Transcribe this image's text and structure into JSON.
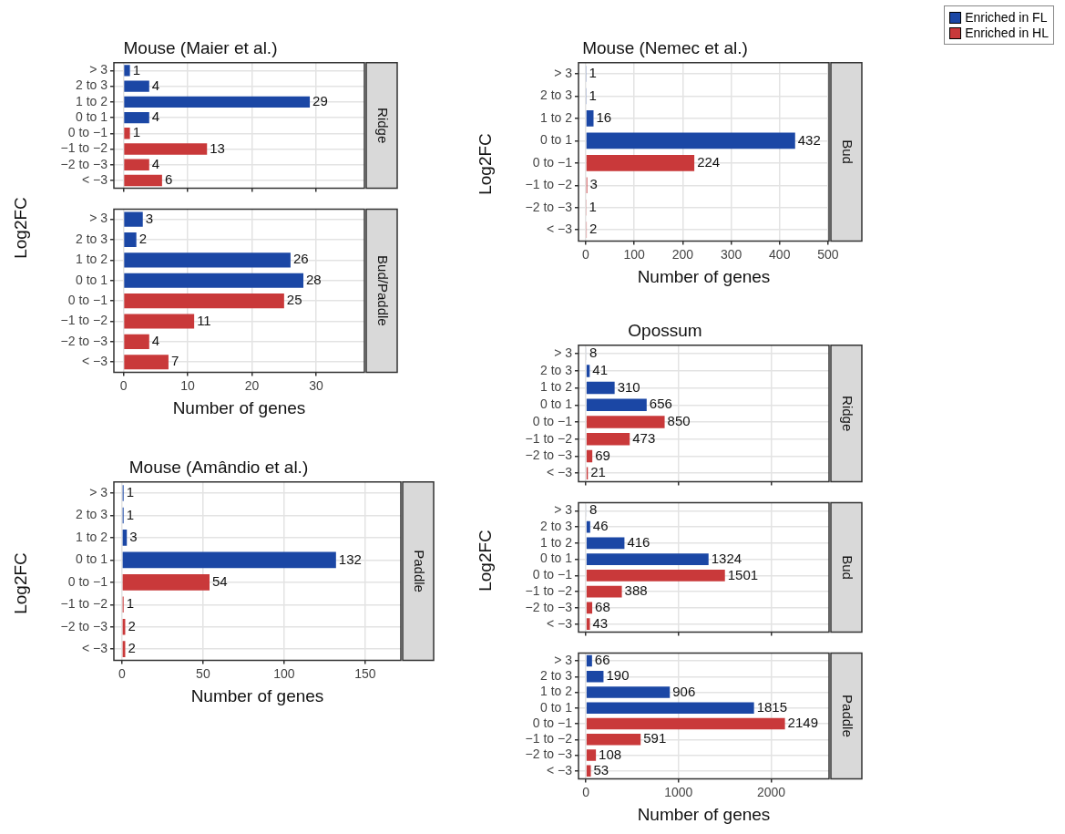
{
  "chart_data": [
    {
      "type": "bar",
      "orientation": "horizontal",
      "stacked": true,
      "title": "Mouse (Maier et al.)",
      "annotations": [
        "Ridge"
      ],
      "ylabel": "Log2FC",
      "categories": [
        "> 3",
        "2 to 3",
        "1 to 2",
        "0 to 1",
        "0 to −1",
        "−1 to −2",
        "−2 to −3",
        "< −3"
      ],
      "series": [
        {
          "name": "Enriched in FL",
          "color": "#1b47a5",
          "values": [
            1,
            4,
            29,
            4,
            null,
            null,
            null,
            null
          ]
        },
        {
          "name": "Enriched in HL",
          "color": "#c9393a",
          "values": [
            null,
            null,
            null,
            null,
            1,
            13,
            4,
            6
          ]
        }
      ],
      "xlim": [
        -1.5,
        37.5
      ],
      "xticks": [
        0,
        10,
        20,
        30
      ],
      "grid": true,
      "legend": "top right",
      "tick_labels": "y",
      "data_labels": true
    },
    {
      "type": "bar",
      "orientation": "horizontal",
      "stacked": true,
      "annotations": [
        "Bud/Paddle"
      ],
      "xlabel": "Number of genes",
      "categories": [
        "> 3",
        "2 to 3",
        "1 to 2",
        "0 to 1",
        "0 to −1",
        "−1 to −2",
        "−2 to −3",
        "< −3"
      ],
      "series": [
        {
          "color": "#1b47a5",
          "values": [
            3,
            2,
            26,
            28,
            null,
            null,
            null,
            null
          ]
        },
        {
          "color": "#c9393a",
          "values": [
            null,
            null,
            null,
            null,
            25,
            11,
            4,
            7
          ]
        }
      ],
      "xlim": [
        -1.5,
        37.5
      ],
      "xticks": [
        0,
        10,
        20,
        30
      ],
      "grid": true,
      "data_labels": true
    },
    {
      "type": "bar",
      "orientation": "horizontal",
      "stacked": true,
      "title": "Mouse (Amândio et al.)",
      "annotations": [
        "Paddle"
      ],
      "ylabel": "Log2FC",
      "xlabel": "Number of genes",
      "categories": [
        "> 3",
        "2 to 3",
        "1 to 2",
        "0 to 1",
        "0 to −1",
        "−1 to −2",
        "−2 to −3",
        "< −3"
      ],
      "series": [
        {
          "color": "#1b47a5",
          "values": [
            1,
            1,
            3,
            132,
            null,
            null,
            null,
            null
          ]
        },
        {
          "color": "#c9393a",
          "values": [
            null,
            null,
            null,
            null,
            54,
            1,
            2,
            2
          ]
        }
      ],
      "xlim": [
        -5,
        172
      ],
      "xticks": [
        0,
        50,
        100,
        150
      ],
      "grid": true,
      "data_labels": true
    },
    {
      "type": "bar",
      "orientation": "horizontal",
      "stacked": true,
      "title": "Mouse (Nemec et al.)",
      "annotations": [
        "Bud"
      ],
      "ylabel": "Log2FC",
      "xlabel": "Number of genes",
      "categories": [
        "> 3",
        "2 to 3",
        "1 to 2",
        "0 to 1",
        "0 to −1",
        "−1 to −2",
        "−2 to −3",
        "< −3"
      ],
      "series": [
        {
          "color": "#1b47a5",
          "values": [
            1,
            1,
            16,
            432,
            null,
            null,
            null,
            null
          ]
        },
        {
          "color": "#c9393a",
          "values": [
            null,
            null,
            null,
            null,
            224,
            3,
            1,
            2
          ]
        }
      ],
      "xlim": [
        -15,
        502
      ],
      "xticks": [
        0,
        100,
        200,
        300,
        400,
        500
      ],
      "grid": true,
      "data_labels": true
    },
    {
      "type": "bar",
      "orientation": "horizontal",
      "stacked": true,
      "title": "Opossum",
      "annotations": [
        "Ridge"
      ],
      "ylabel": "Log2FC",
      "categories": [
        "> 3",
        "2 to 3",
        "1 to 2",
        "0 to 1",
        "0 to −1",
        "−1 to −2",
        "−2 to −3",
        "< −3"
      ],
      "series": [
        {
          "color": "#1b47a5",
          "values": [
            8,
            41,
            310,
            656,
            null,
            null,
            null,
            null
          ]
        },
        {
          "color": "#c9393a",
          "values": [
            null,
            null,
            null,
            null,
            850,
            473,
            69,
            21
          ]
        }
      ],
      "xlim": [
        -80,
        2625
      ],
      "xticks": [
        0,
        1000,
        2000
      ],
      "grid": true,
      "tick_labels": "y",
      "data_labels": true
    },
    {
      "type": "bar",
      "orientation": "horizontal",
      "stacked": true,
      "annotations": [
        "Bud"
      ],
      "categories": [
        "> 3",
        "2 to 3",
        "1 to 2",
        "0 to 1",
        "0 to −1",
        "−1 to −2",
        "−2 to −3",
        "< −3"
      ],
      "series": [
        {
          "color": "#1b47a5",
          "values": [
            8,
            46,
            416,
            1324,
            null,
            null,
            null,
            null
          ]
        },
        {
          "color": "#c9393a",
          "values": [
            null,
            null,
            null,
            null,
            1501,
            388,
            68,
            43
          ]
        }
      ],
      "xlim": [
        -80,
        2625
      ],
      "xticks": [
        0,
        1000,
        2000
      ],
      "grid": true,
      "tick_labels": "y",
      "data_labels": true
    },
    {
      "type": "bar",
      "orientation": "horizontal",
      "stacked": true,
      "annotations": [
        "Paddle"
      ],
      "xlabel": "Number of genes",
      "categories": [
        "> 3",
        "2 to 3",
        "1 to 2",
        "0 to 1",
        "0 to −1",
        "−1 to −2",
        "−2 to −3",
        "< −3"
      ],
      "series": [
        {
          "color": "#1b47a5",
          "values": [
            66,
            190,
            906,
            1815,
            null,
            null,
            null,
            null
          ]
        },
        {
          "color": "#c9393a",
          "values": [
            null,
            null,
            null,
            null,
            2149,
            591,
            108,
            53
          ]
        }
      ],
      "xlim": [
        -80,
        2625
      ],
      "xticks": [
        0,
        1000,
        2000
      ],
      "grid": true,
      "data_labels": true
    }
  ]
}
